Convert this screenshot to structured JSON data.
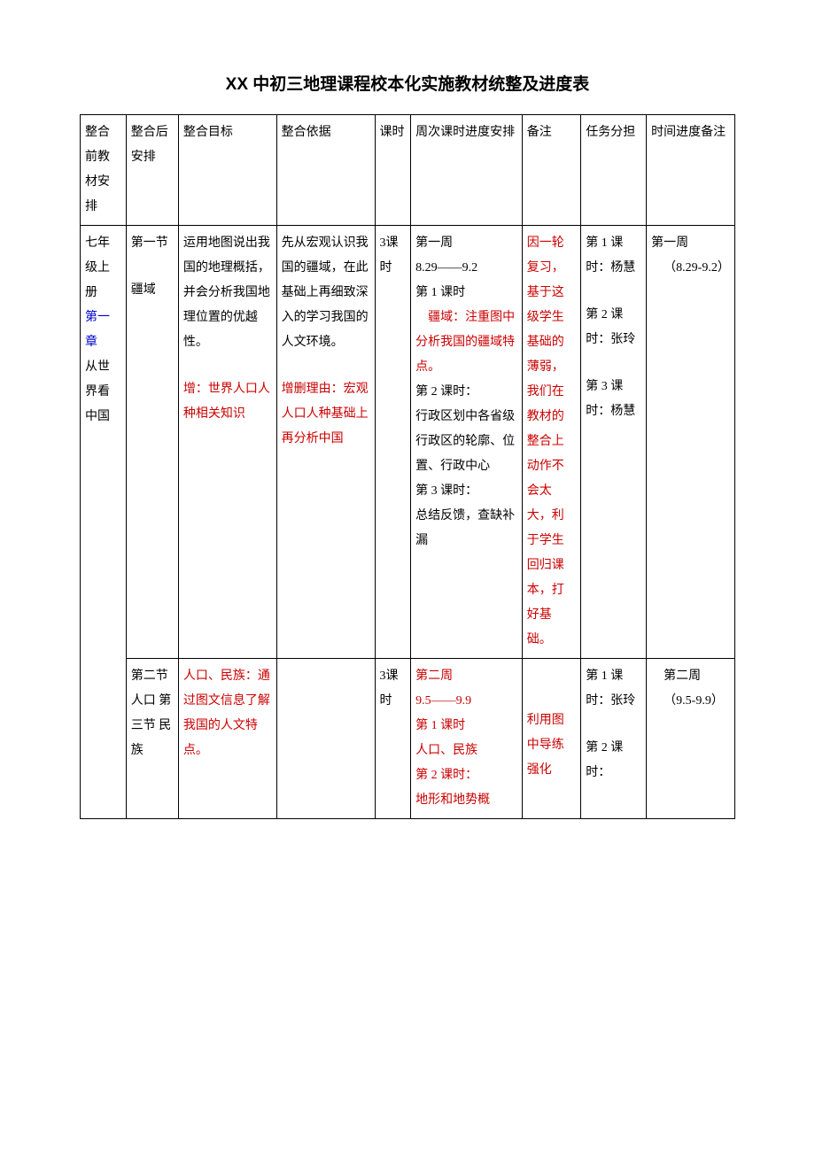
{
  "title": "XX 中初三地理课程校本化实施教材统整及进度表",
  "header": {
    "c0": "整合前教材安排",
    "c1": "整合后安排",
    "c2": "整合目标",
    "c3": "整合依据",
    "c4": "课时",
    "c5": "周次课时进度安排",
    "c6": "备注",
    "c7": "任务分担",
    "c8": "时间进度备注"
  },
  "row1": {
    "c0a": "七年级上册",
    "c0b": "第一章",
    "c0c": "从世界看中国",
    "c1a": "第一节",
    "c1b": "疆域",
    "c2a": "运用地图说出我国的地理概括，并会分析我国地理位置的优越性。",
    "c2b": "增：世界人口人种相关知识",
    "c3a": "先从宏观认识我国的疆域，在此基础上再细致深入的学习我国的人文环境。",
    "c3b": "增删理由：宏观人口人种基础上再分析中国",
    "c4": "3课时",
    "c5a": "第一周",
    "c5b": "8.29——9.2",
    "c5c": "第 1 课时",
    "c5d": "疆域：注重图中分析我国的疆域特点。",
    "c5e": "第 2 课时：",
    "c5f": "行政区划中各省级行政区的轮廓、位置、行政中心",
    "c5g": "第 3 课时：",
    "c5h": "总结反馈，查缺补漏",
    "c6": "因一轮复习，基于这级学生基础的薄弱，我们在教材的整合上动作不会太大，利于学生回归课本，打好基础。",
    "c7a": "第 1 课时：杨慧",
    "c7b": "第 2 课时：张玲",
    "c7c": "第 3 课时：杨慧",
    "c8a": "第一周",
    "c8b": "（8.29-9.2）"
  },
  "row2": {
    "c1": "第二节 人口 第三节 民族",
    "c2": "人口、民族：通过图文信息了解我国的人文特点。",
    "c4": "3课时",
    "c5a": "第二周",
    "c5b": "9.5——9.9",
    "c5c": "第 1 课时",
    "c5d": "人口、民族",
    "c5e": "第 2 课时：",
    "c5f": "地形和地势概",
    "c6": "利用图中导练强化",
    "c7a": "第 1 课时：张玲",
    "c7b": "第 2 课时：",
    "c8a": "第二周",
    "c8b": "（9.5-9.9）"
  }
}
